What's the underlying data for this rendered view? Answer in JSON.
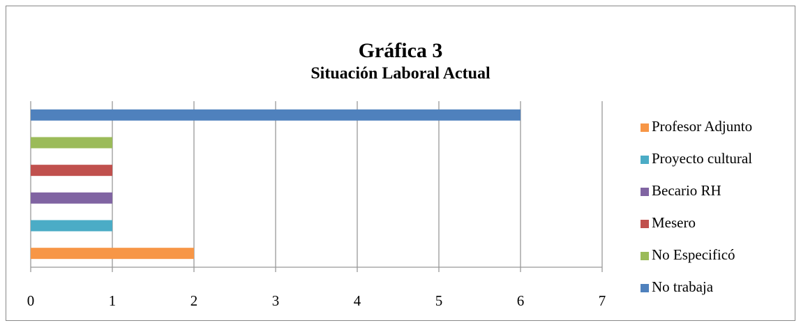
{
  "chart_data": {
    "type": "bar",
    "orientation": "horizontal",
    "title": "Gráfica 3",
    "subtitle": "Situación Laboral Actual",
    "categories": [
      "Profesor Adjunto",
      "Proyecto cultural",
      "Becario RH",
      "Mesero",
      "No Especificó",
      "No trabaja"
    ],
    "values": [
      2,
      1,
      1,
      1,
      1,
      6
    ],
    "colors": [
      "#f79646",
      "#4bacc6",
      "#8064a2",
      "#c0504d",
      "#9bbb59",
      "#4f81bd"
    ],
    "xlim": [
      0,
      7
    ],
    "xticks": [
      0,
      1,
      2,
      3,
      4,
      5,
      6,
      7
    ],
    "grid": true,
    "legend": "right"
  }
}
